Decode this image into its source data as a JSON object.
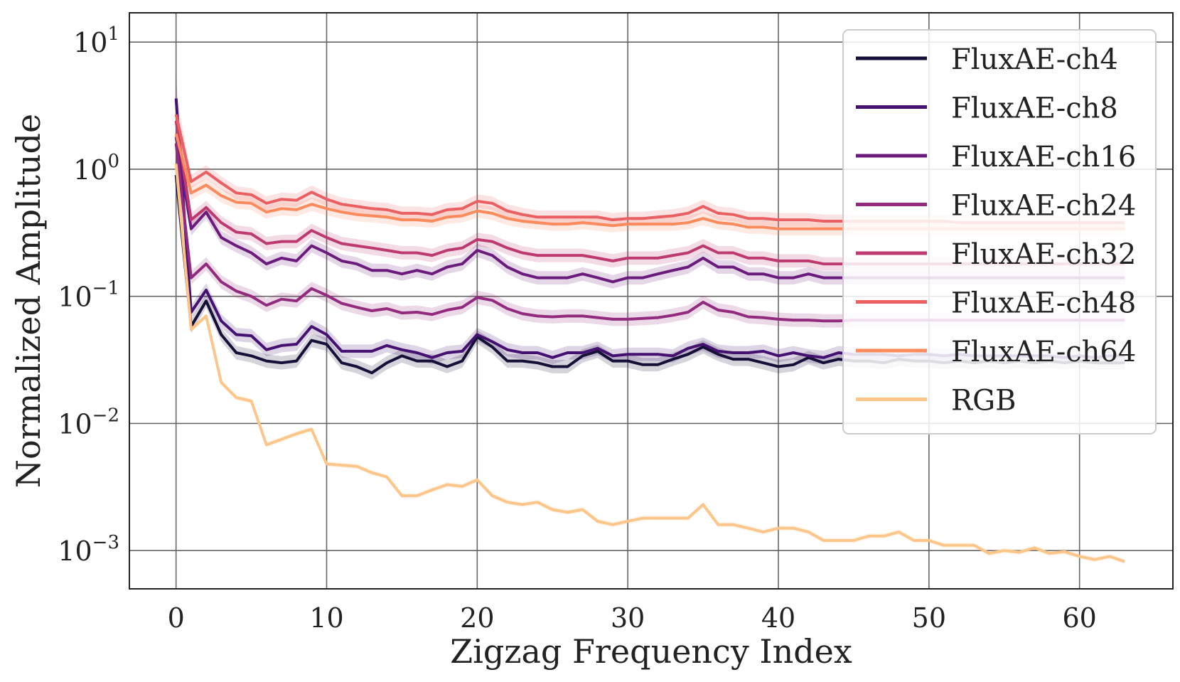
{
  "chart_data": {
    "type": "line",
    "title": "",
    "xlabel": "Zigzag Frequency Index",
    "ylabel": "Normalized Amplitude",
    "xlim": [
      -3.1,
      66.2
    ],
    "ylim": [
      0.0005,
      17
    ],
    "yscale": "log",
    "x_ticks": [
      0,
      10,
      20,
      30,
      40,
      50,
      60
    ],
    "y_ticks": [
      {
        "value": 10,
        "base": "10",
        "exp": "1"
      },
      {
        "value": 1,
        "base": "10",
        "exp": "0"
      },
      {
        "value": 0.1,
        "base": "10",
        "exp": "−1"
      },
      {
        "value": 0.01,
        "base": "10",
        "exp": "−2"
      },
      {
        "value": 0.001,
        "base": "10",
        "exp": "−3"
      }
    ],
    "grid": true,
    "legend_position": "top-right",
    "x": [
      0,
      1,
      2,
      3,
      4,
      5,
      6,
      7,
      8,
      9,
      10,
      11,
      12,
      13,
      14,
      15,
      16,
      17,
      18,
      19,
      20,
      21,
      22,
      23,
      24,
      25,
      26,
      27,
      28,
      29,
      30,
      31,
      32,
      33,
      34,
      35,
      36,
      37,
      38,
      39,
      40,
      41,
      42,
      43,
      44,
      45,
      46,
      47,
      48,
      49,
      50,
      51,
      52,
      53,
      54,
      55,
      56,
      57,
      58,
      59,
      60,
      61,
      62,
      63
    ],
    "series": [
      {
        "name": "FluxAE-ch4",
        "color": "#160f37",
        "values": [
          0.9,
          0.058,
          0.092,
          0.05,
          0.036,
          0.034,
          0.031,
          0.03,
          0.031,
          0.045,
          0.042,
          0.03,
          0.028,
          0.025,
          0.03,
          0.034,
          0.031,
          0.031,
          0.028,
          0.031,
          0.048,
          0.04,
          0.031,
          0.031,
          0.03,
          0.028,
          0.028,
          0.034,
          0.037,
          0.031,
          0.031,
          0.029,
          0.029,
          0.032,
          0.035,
          0.04,
          0.035,
          0.032,
          0.032,
          0.03,
          0.028,
          0.029,
          0.033,
          0.03,
          0.032,
          0.031,
          0.031,
          0.03,
          0.032,
          0.031,
          0.031,
          0.03,
          0.031,
          0.03,
          0.031,
          0.03,
          0.031,
          0.03,
          0.031,
          0.03,
          0.031,
          0.03,
          0.03,
          0.03
        ]
      },
      {
        "name": "FluxAE-ch8",
        "color": "#441170",
        "values": [
          3.6,
          0.075,
          0.112,
          0.064,
          0.05,
          0.049,
          0.038,
          0.041,
          0.042,
          0.058,
          0.05,
          0.037,
          0.037,
          0.037,
          0.041,
          0.038,
          0.036,
          0.033,
          0.036,
          0.037,
          0.05,
          0.044,
          0.038,
          0.036,
          0.036,
          0.033,
          0.036,
          0.036,
          0.039,
          0.034,
          0.035,
          0.035,
          0.035,
          0.034,
          0.039,
          0.042,
          0.037,
          0.036,
          0.036,
          0.037,
          0.034,
          0.036,
          0.034,
          0.033,
          0.036,
          0.035,
          0.035,
          0.035,
          0.034,
          0.035,
          0.035,
          0.034,
          0.035,
          0.034,
          0.034,
          0.034,
          0.034,
          0.034,
          0.034,
          0.033,
          0.034,
          0.033,
          0.034,
          0.034
        ]
      },
      {
        "name": "FluxAE-ch16",
        "color": "#6a1b7c",
        "values": [
          1.8,
          0.34,
          0.46,
          0.29,
          0.25,
          0.22,
          0.18,
          0.2,
          0.19,
          0.25,
          0.22,
          0.19,
          0.18,
          0.16,
          0.16,
          0.15,
          0.16,
          0.15,
          0.17,
          0.18,
          0.23,
          0.21,
          0.17,
          0.15,
          0.14,
          0.14,
          0.14,
          0.15,
          0.14,
          0.13,
          0.14,
          0.14,
          0.15,
          0.16,
          0.17,
          0.2,
          0.17,
          0.17,
          0.15,
          0.15,
          0.14,
          0.14,
          0.15,
          0.14,
          0.14,
          0.14,
          0.14,
          0.14,
          0.14,
          0.14,
          0.14,
          0.14,
          0.14,
          0.14,
          0.14,
          0.14,
          0.14,
          0.14,
          0.14,
          0.14,
          0.14,
          0.14,
          0.14,
          0.14
        ]
      },
      {
        "name": "FluxAE-ch24",
        "color": "#922a7e",
        "values": [
          1.6,
          0.14,
          0.18,
          0.13,
          0.11,
          0.1,
          0.085,
          0.095,
          0.092,
          0.115,
          0.102,
          0.088,
          0.082,
          0.077,
          0.08,
          0.074,
          0.075,
          0.072,
          0.078,
          0.082,
          0.098,
          0.093,
          0.08,
          0.073,
          0.07,
          0.069,
          0.07,
          0.07,
          0.068,
          0.066,
          0.066,
          0.067,
          0.068,
          0.071,
          0.075,
          0.09,
          0.078,
          0.075,
          0.069,
          0.068,
          0.066,
          0.065,
          0.065,
          0.064,
          0.064,
          0.065,
          0.065,
          0.065,
          0.065,
          0.065,
          0.065,
          0.065,
          0.065,
          0.065,
          0.065,
          0.065,
          0.065,
          0.065,
          0.065,
          0.065,
          0.065,
          0.065,
          0.065,
          0.065
        ]
      },
      {
        "name": "FluxAE-ch32",
        "color": "#bd3a70",
        "values": [
          2.4,
          0.4,
          0.5,
          0.38,
          0.32,
          0.31,
          0.26,
          0.27,
          0.27,
          0.33,
          0.29,
          0.26,
          0.25,
          0.24,
          0.23,
          0.22,
          0.22,
          0.21,
          0.23,
          0.24,
          0.28,
          0.27,
          0.24,
          0.22,
          0.21,
          0.21,
          0.21,
          0.21,
          0.2,
          0.19,
          0.2,
          0.2,
          0.2,
          0.21,
          0.22,
          0.25,
          0.22,
          0.22,
          0.2,
          0.2,
          0.19,
          0.19,
          0.19,
          0.18,
          0.18,
          0.18,
          0.18,
          0.18,
          0.18,
          0.18,
          0.18,
          0.18,
          0.18,
          0.18,
          0.18,
          0.18,
          0.18,
          0.18,
          0.18,
          0.18,
          0.18,
          0.18,
          0.18,
          0.18
        ]
      },
      {
        "name": "FluxAE-ch48",
        "color": "#ea5f62",
        "values": [
          2.7,
          0.8,
          0.95,
          0.78,
          0.65,
          0.63,
          0.54,
          0.58,
          0.57,
          0.66,
          0.58,
          0.53,
          0.51,
          0.49,
          0.48,
          0.45,
          0.45,
          0.44,
          0.48,
          0.49,
          0.56,
          0.54,
          0.47,
          0.44,
          0.42,
          0.42,
          0.42,
          0.42,
          0.42,
          0.4,
          0.41,
          0.41,
          0.42,
          0.43,
          0.45,
          0.51,
          0.45,
          0.44,
          0.41,
          0.41,
          0.4,
          0.4,
          0.4,
          0.39,
          0.39,
          0.39,
          0.39,
          0.39,
          0.39,
          0.39,
          0.39,
          0.39,
          0.38,
          0.38,
          0.38,
          0.38,
          0.38,
          0.38,
          0.38,
          0.38,
          0.38,
          0.38,
          0.38,
          0.38
        ]
      },
      {
        "name": "FluxAE-ch64",
        "color": "#fb8a5c",
        "values": [
          1.9,
          0.65,
          0.75,
          0.62,
          0.55,
          0.54,
          0.46,
          0.49,
          0.48,
          0.53,
          0.49,
          0.46,
          0.44,
          0.43,
          0.42,
          0.4,
          0.4,
          0.39,
          0.42,
          0.43,
          0.47,
          0.45,
          0.41,
          0.39,
          0.38,
          0.37,
          0.37,
          0.38,
          0.37,
          0.36,
          0.37,
          0.37,
          0.37,
          0.37,
          0.38,
          0.41,
          0.38,
          0.37,
          0.35,
          0.35,
          0.34,
          0.34,
          0.34,
          0.34,
          0.34,
          0.34,
          0.34,
          0.34,
          0.34,
          0.34,
          0.34,
          0.34,
          0.34,
          0.34,
          0.34,
          0.34,
          0.34,
          0.34,
          0.34,
          0.34,
          0.34,
          0.34,
          0.34,
          0.34
        ]
      },
      {
        "name": "RGB",
        "color": "#fcc68b",
        "values": [
          1.1,
          0.055,
          0.07,
          0.021,
          0.016,
          0.015,
          0.0068,
          0.0075,
          0.0083,
          0.009,
          0.0048,
          0.0047,
          0.0046,
          0.0041,
          0.0038,
          0.0027,
          0.0027,
          0.003,
          0.0033,
          0.0032,
          0.0036,
          0.0027,
          0.0024,
          0.0023,
          0.0024,
          0.0021,
          0.002,
          0.0021,
          0.0017,
          0.0016,
          0.0017,
          0.0018,
          0.0018,
          0.0018,
          0.0018,
          0.0023,
          0.0016,
          0.0016,
          0.0015,
          0.0014,
          0.0015,
          0.0015,
          0.0014,
          0.0012,
          0.0012,
          0.0012,
          0.0013,
          0.0013,
          0.0014,
          0.0012,
          0.0012,
          0.0011,
          0.0011,
          0.0011,
          0.00095,
          0.001,
          0.00097,
          0.00105,
          0.00095,
          0.00098,
          0.0009,
          0.00085,
          0.0009,
          0.00082
        ]
      }
    ]
  }
}
